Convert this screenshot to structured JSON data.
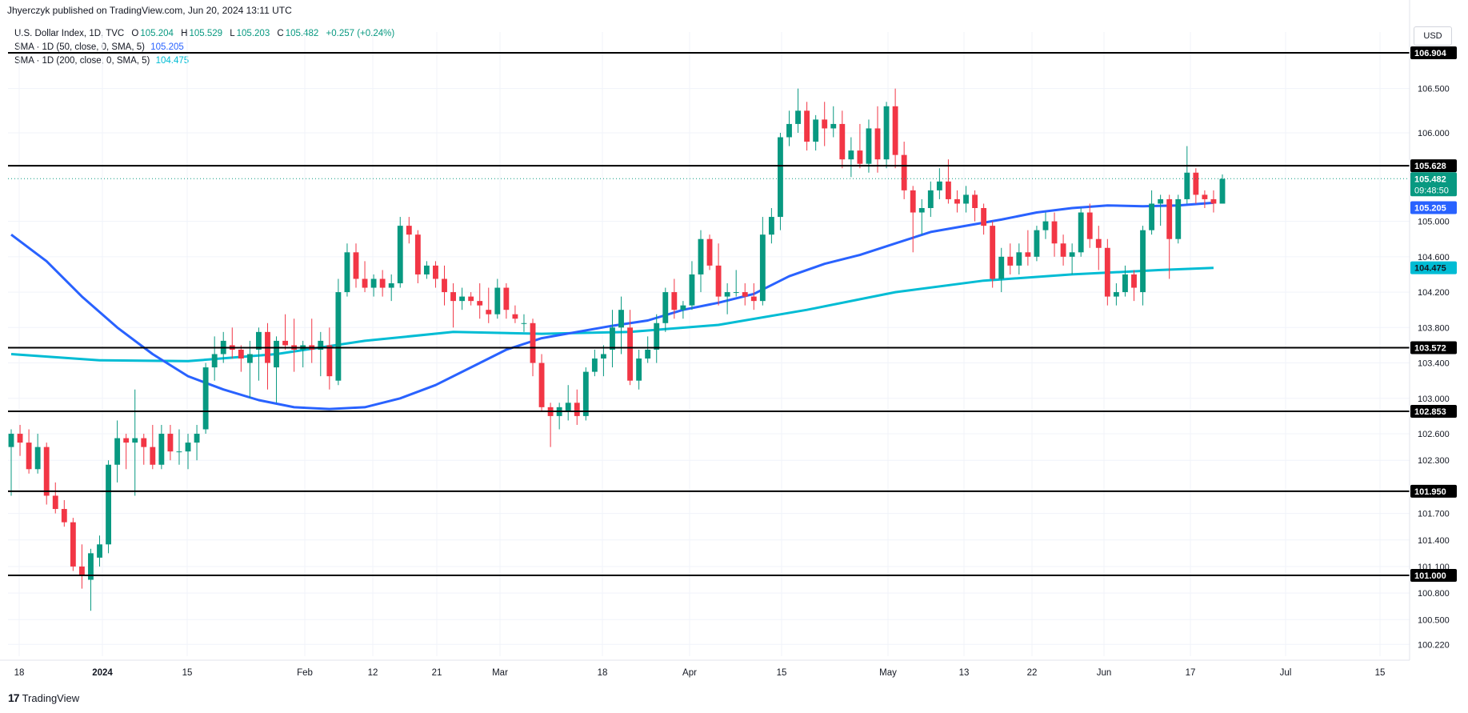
{
  "header": {
    "published": "Jhyerczyk published on TradingView.com, Jun 20, 2024 13:11 UTC"
  },
  "legend": {
    "symbol": "U.S. Dollar Index, 1D, TVC",
    "o_label": "O",
    "o_value": "105.204",
    "h_label": "H",
    "h_value": "105.529",
    "l_label": "L",
    "l_value": "105.203",
    "c_label": "C",
    "c_value": "105.482",
    "change": "+0.257 (+0.24%)",
    "sma50_label": "SMA · 1D (50, close, 0, SMA, 5)",
    "sma50_value": "105.205",
    "sma200_label": "SMA · 1D (200, close, 0, SMA, 5)",
    "sma200_value": "104.475"
  },
  "currency": "USD",
  "brand": "TradingView",
  "colors": {
    "up": "#089981",
    "down": "#f23645",
    "sma50": "#2962ff",
    "sma200": "#00bcd4",
    "grid": "#f0f3fa",
    "level": "#000000"
  },
  "chart_data": {
    "type": "candlestick",
    "x_tick_labels": [
      "18",
      "2024",
      "15",
      "Feb",
      "12",
      "21",
      "Mar",
      "18",
      "Apr",
      "15",
      "May",
      "13",
      "22",
      "Jun",
      "17",
      "Jul",
      "15"
    ],
    "y_tick_labels": [
      "106.500",
      "106.000",
      "105.000",
      "104.600",
      "104.200",
      "103.800",
      "103.400",
      "103.000",
      "102.600",
      "102.300",
      "101.700",
      "101.400",
      "101.100",
      "100.800",
      "100.500",
      "100.220"
    ],
    "ylim": [
      100.0,
      107.0
    ],
    "horizontal_levels": [
      106.904,
      105.628,
      103.572,
      102.853,
      101.95,
      101.0
    ],
    "level_labels": [
      "106.904",
      "105.628",
      "103.572",
      "102.853",
      "101.950",
      "101.000"
    ],
    "last_price": 105.482,
    "last_price_label": "105.482",
    "countdown": "09:48:50",
    "sma50_last_label": "105.205",
    "sma200_last_label": "104.475",
    "candles": [
      [
        102.45,
        102.65,
        101.9,
        102.6
      ],
      [
        102.6,
        102.7,
        102.35,
        102.5
      ],
      [
        102.5,
        102.65,
        102.15,
        102.2
      ],
      [
        102.2,
        102.6,
        102.15,
        102.45
      ],
      [
        102.45,
        102.5,
        101.8,
        101.9
      ],
      [
        101.9,
        102.05,
        101.7,
        101.75
      ],
      [
        101.75,
        101.85,
        101.55,
        101.6
      ],
      [
        101.6,
        101.65,
        101.05,
        101.1
      ],
      [
        101.1,
        101.35,
        100.85,
        101.0
      ],
      [
        100.95,
        101.3,
        100.6,
        101.25
      ],
      [
        101.2,
        101.45,
        101.1,
        101.35
      ],
      [
        101.35,
        102.3,
        101.25,
        102.25
      ],
      [
        102.25,
        102.75,
        102.05,
        102.55
      ],
      [
        102.55,
        102.6,
        102.2,
        102.5
      ],
      [
        102.5,
        103.1,
        101.9,
        102.55
      ],
      [
        102.55,
        102.6,
        102.25,
        102.45
      ],
      [
        102.45,
        102.7,
        102.2,
        102.25
      ],
      [
        102.25,
        102.7,
        102.2,
        102.6
      ],
      [
        102.6,
        102.7,
        102.3,
        102.4
      ],
      [
        102.4,
        102.65,
        102.25,
        102.4
      ],
      [
        102.4,
        102.6,
        102.2,
        102.5
      ],
      [
        102.5,
        102.7,
        102.3,
        102.6
      ],
      [
        102.65,
        103.4,
        102.6,
        103.35
      ],
      [
        103.35,
        103.7,
        103.2,
        103.5
      ],
      [
        103.5,
        103.75,
        103.4,
        103.65
      ],
      [
        103.6,
        103.8,
        103.45,
        103.55
      ],
      [
        103.55,
        103.6,
        103.3,
        103.45
      ],
      [
        103.4,
        103.65,
        103.0,
        103.5
      ],
      [
        103.55,
        103.8,
        103.2,
        103.75
      ],
      [
        103.75,
        103.85,
        103.1,
        103.4
      ],
      [
        103.35,
        103.7,
        102.95,
        103.65
      ],
      [
        103.65,
        103.95,
        103.55,
        103.6
      ],
      [
        103.6,
        103.9,
        103.3,
        103.55
      ],
      [
        103.55,
        103.65,
        103.35,
        103.6
      ],
      [
        103.6,
        103.9,
        103.4,
        103.55
      ],
      [
        103.55,
        103.75,
        103.25,
        103.65
      ],
      [
        103.6,
        103.8,
        103.1,
        103.25
      ],
      [
        103.2,
        104.35,
        103.15,
        104.2
      ],
      [
        104.2,
        104.75,
        104.15,
        104.65
      ],
      [
        104.65,
        104.75,
        104.25,
        104.35
      ],
      [
        104.35,
        104.55,
        104.2,
        104.25
      ],
      [
        104.25,
        104.4,
        104.15,
        104.35
      ],
      [
        104.35,
        104.45,
        104.15,
        104.25
      ],
      [
        104.25,
        104.4,
        104.1,
        104.3
      ],
      [
        104.3,
        105.05,
        104.25,
        104.95
      ],
      [
        104.95,
        105.05,
        104.75,
        104.85
      ],
      [
        104.85,
        104.9,
        104.3,
        104.4
      ],
      [
        104.4,
        104.55,
        104.35,
        104.5
      ],
      [
        104.5,
        104.55,
        104.25,
        104.35
      ],
      [
        104.35,
        104.5,
        104.05,
        104.2
      ],
      [
        104.2,
        104.3,
        103.8,
        104.1
      ],
      [
        104.1,
        104.25,
        104.0,
        104.15
      ],
      [
        104.15,
        104.2,
        104.05,
        104.1
      ],
      [
        104.1,
        104.3,
        103.9,
        104.05
      ],
      [
        104.0,
        104.25,
        103.85,
        103.95
      ],
      [
        103.95,
        104.35,
        103.9,
        104.25
      ],
      [
        104.25,
        104.3,
        103.9,
        104.0
      ],
      [
        103.95,
        104.05,
        103.85,
        103.9
      ],
      [
        103.85,
        103.95,
        103.75,
        103.85
      ],
      [
        103.85,
        103.9,
        103.25,
        103.4
      ],
      [
        103.4,
        103.5,
        102.85,
        102.9
      ],
      [
        102.9,
        102.95,
        102.45,
        102.8
      ],
      [
        102.8,
        102.95,
        102.65,
        102.9
      ],
      [
        102.85,
        103.15,
        102.75,
        102.95
      ],
      [
        102.95,
        103.1,
        102.7,
        102.8
      ],
      [
        102.8,
        103.35,
        102.75,
        103.3
      ],
      [
        103.3,
        103.55,
        103.25,
        103.45
      ],
      [
        103.45,
        103.6,
        103.25,
        103.5
      ],
      [
        103.55,
        104.0,
        103.35,
        103.8
      ],
      [
        103.8,
        104.15,
        103.5,
        104.0
      ],
      [
        103.8,
        104.0,
        103.15,
        103.2
      ],
      [
        103.2,
        103.55,
        103.1,
        103.45
      ],
      [
        103.45,
        103.7,
        103.4,
        103.55
      ],
      [
        103.55,
        103.95,
        103.4,
        103.85
      ],
      [
        103.85,
        104.25,
        103.75,
        104.2
      ],
      [
        104.2,
        104.35,
        103.9,
        104.0
      ],
      [
        104.0,
        104.1,
        103.9,
        104.05
      ],
      [
        104.05,
        104.55,
        104.0,
        104.4
      ],
      [
        104.4,
        104.9,
        104.2,
        104.8
      ],
      [
        104.8,
        104.85,
        104.45,
        104.5
      ],
      [
        104.5,
        104.75,
        104.05,
        104.15
      ],
      [
        104.15,
        104.3,
        103.95,
        104.2
      ],
      [
        104.2,
        104.45,
        104.15,
        104.2
      ],
      [
        104.2,
        104.3,
        104.05,
        104.15
      ],
      [
        104.15,
        104.3,
        104.0,
        104.1
      ],
      [
        104.1,
        105.05,
        104.05,
        104.85
      ],
      [
        104.85,
        105.15,
        104.75,
        105.05
      ],
      [
        105.05,
        106.0,
        104.9,
        105.95
      ],
      [
        105.95,
        106.25,
        105.85,
        106.1
      ],
      [
        106.1,
        106.5,
        106.0,
        106.25
      ],
      [
        106.25,
        106.35,
        105.8,
        105.9
      ],
      [
        105.9,
        106.2,
        105.8,
        106.15
      ],
      [
        106.15,
        106.35,
        105.85,
        106.05
      ],
      [
        106.05,
        106.3,
        105.95,
        106.1
      ],
      [
        106.1,
        106.25,
        105.6,
        105.7
      ],
      [
        105.7,
        105.95,
        105.5,
        105.8
      ],
      [
        105.8,
        106.1,
        105.6,
        105.65
      ],
      [
        105.65,
        106.15,
        105.55,
        106.05
      ],
      [
        106.05,
        106.3,
        105.55,
        105.7
      ],
      [
        105.7,
        106.35,
        105.6,
        106.3
      ],
      [
        106.3,
        106.5,
        105.6,
        105.75
      ],
      [
        105.75,
        105.9,
        105.25,
        105.35
      ],
      [
        105.35,
        105.4,
        104.65,
        105.1
      ],
      [
        105.1,
        105.25,
        104.85,
        105.15
      ],
      [
        105.15,
        105.45,
        105.05,
        105.35
      ],
      [
        105.35,
        105.6,
        105.25,
        105.45
      ],
      [
        105.45,
        105.7,
        105.2,
        105.25
      ],
      [
        105.25,
        105.35,
        105.1,
        105.2
      ],
      [
        105.2,
        105.4,
        105.1,
        105.3
      ],
      [
        105.3,
        105.35,
        105.0,
        105.15
      ],
      [
        105.15,
        105.2,
        104.85,
        104.95
      ],
      [
        104.95,
        105.0,
        104.25,
        104.35
      ],
      [
        104.35,
        104.7,
        104.2,
        104.6
      ],
      [
        104.6,
        104.75,
        104.4,
        104.5
      ],
      [
        104.5,
        104.75,
        104.4,
        104.65
      ],
      [
        104.65,
        104.9,
        104.5,
        104.6
      ],
      [
        104.6,
        104.95,
        104.55,
        104.9
      ],
      [
        104.9,
        105.1,
        104.8,
        105.0
      ],
      [
        105.0,
        105.1,
        104.6,
        104.75
      ],
      [
        104.75,
        104.85,
        104.5,
        104.6
      ],
      [
        104.6,
        104.75,
        104.4,
        104.65
      ],
      [
        104.65,
        105.15,
        104.6,
        105.1
      ],
      [
        105.1,
        105.2,
        104.7,
        104.8
      ],
      [
        104.8,
        104.95,
        104.45,
        104.7
      ],
      [
        104.7,
        104.8,
        104.05,
        104.15
      ],
      [
        104.15,
        104.3,
        104.05,
        104.2
      ],
      [
        104.2,
        104.5,
        104.15,
        104.4
      ],
      [
        104.4,
        104.45,
        104.1,
        104.25
      ],
      [
        104.2,
        104.95,
        104.05,
        104.9
      ],
      [
        104.9,
        105.35,
        104.85,
        105.2
      ],
      [
        105.2,
        105.3,
        104.95,
        105.25
      ],
      [
        105.25,
        105.3,
        104.35,
        104.8
      ],
      [
        104.8,
        105.3,
        104.75,
        105.25
      ],
      [
        105.25,
        105.85,
        105.2,
        105.55
      ],
      [
        105.55,
        105.6,
        105.2,
        105.3
      ],
      [
        105.3,
        105.35,
        105.15,
        105.25
      ],
      [
        105.25,
        105.35,
        105.1,
        105.2
      ],
      [
        105.2,
        105.53,
        105.2,
        105.48
      ]
    ],
    "sma50": [
      null,
      null,
      null,
      null,
      null,
      null,
      null,
      null,
      null,
      null,
      null,
      null,
      null,
      null,
      null,
      null,
      null,
      null,
      null,
      null,
      null,
      null,
      null,
      null,
      null,
      null,
      null,
      null,
      null,
      null,
      null,
      null,
      null,
      null,
      null,
      null,
      null,
      null,
      null,
      null,
      null,
      null,
      null,
      null,
      null,
      null,
      null,
      null,
      null,
      null,
      null,
      null,
      null,
      null,
      null,
      null,
      null,
      null,
      null,
      null,
      null,
      null,
      null,
      null,
      null,
      null,
      null,
      null,
      null,
      null,
      null,
      null,
      null,
      null,
      null,
      null,
      null,
      null,
      null,
      null,
      null,
      null,
      null,
      null,
      null,
      null,
      null,
      null,
      null,
      null,
      null,
      null,
      null,
      null,
      null,
      null,
      null,
      null,
      null,
      null,
      null,
      null,
      null,
      null,
      null,
      null,
      null,
      null,
      null,
      null,
      null,
      null,
      null,
      null,
      null,
      null,
      null,
      null,
      null,
      null,
      null,
      null,
      null,
      null,
      null,
      null,
      null,
      null,
      null,
      null,
      null,
      null,
      null,
      null,
      null,
      null,
      null,
      null,
      null,
      null
    ],
    "sma50_path": [
      [
        0,
        104.85
      ],
      [
        4,
        104.55
      ],
      [
        8,
        104.15
      ],
      [
        12,
        103.8
      ],
      [
        16,
        103.5
      ],
      [
        20,
        103.25
      ],
      [
        24,
        103.1
      ],
      [
        28,
        102.98
      ],
      [
        32,
        102.9
      ],
      [
        36,
        102.88
      ],
      [
        40,
        102.9
      ],
      [
        44,
        103.0
      ],
      [
        48,
        103.15
      ],
      [
        52,
        103.35
      ],
      [
        56,
        103.55
      ],
      [
        60,
        103.68
      ],
      [
        64,
        103.75
      ],
      [
        68,
        103.82
      ],
      [
        72,
        103.88
      ],
      [
        76,
        104.0
      ],
      [
        80,
        104.08
      ],
      [
        84,
        104.18
      ],
      [
        88,
        104.38
      ],
      [
        92,
        104.52
      ],
      [
        96,
        104.62
      ],
      [
        100,
        104.75
      ],
      [
        104,
        104.88
      ],
      [
        108,
        104.95
      ],
      [
        112,
        105.02
      ],
      [
        116,
        105.1
      ],
      [
        120,
        105.15
      ],
      [
        124,
        105.18
      ],
      [
        128,
        105.17
      ],
      [
        132,
        105.18
      ],
      [
        136,
        105.21
      ]
    ],
    "sma200_path": [
      [
        0,
        103.5
      ],
      [
        10,
        103.43
      ],
      [
        20,
        103.42
      ],
      [
        30,
        103.5
      ],
      [
        40,
        103.65
      ],
      [
        50,
        103.75
      ],
      [
        60,
        103.73
      ],
      [
        70,
        103.75
      ],
      [
        80,
        103.83
      ],
      [
        90,
        104.0
      ],
      [
        100,
        104.2
      ],
      [
        110,
        104.33
      ],
      [
        120,
        104.4
      ],
      [
        130,
        104.45
      ],
      [
        136,
        104.475
      ]
    ]
  }
}
